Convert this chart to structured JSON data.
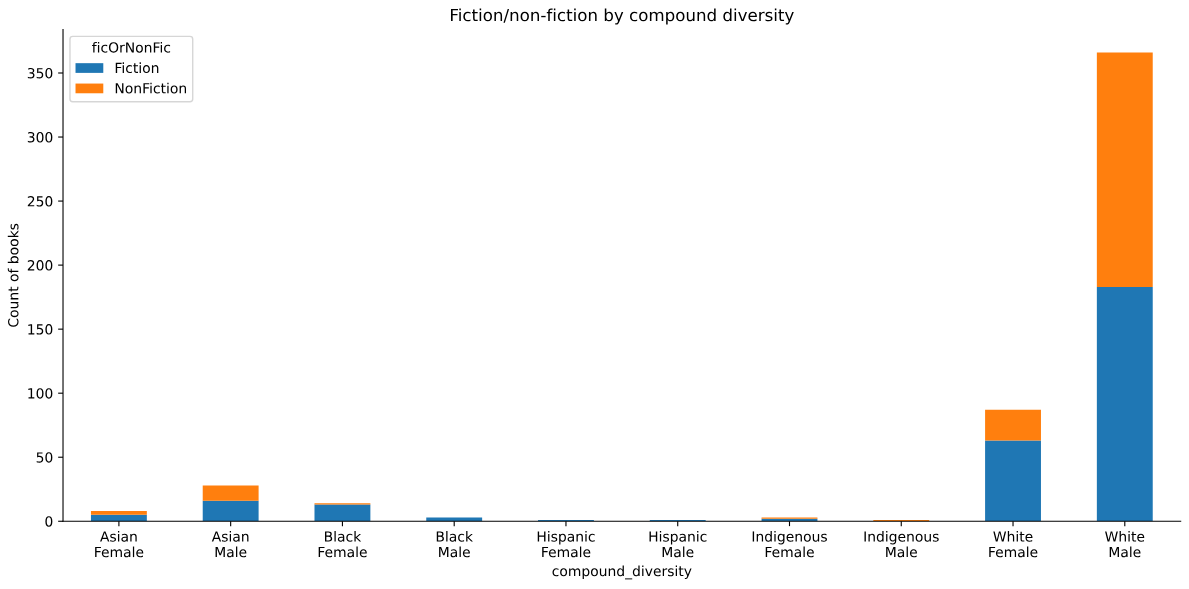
{
  "chart_data": {
    "type": "bar",
    "title": "Fiction/non-fiction by compound diversity",
    "xlabel": "compound_diversity",
    "ylabel": "Count of books",
    "legend_title": "ficOrNonFic",
    "categories": [
      "Asian\nFemale",
      "Asian\nMale",
      "Black\nFemale",
      "Black\nMale",
      "Hispanic\nFemale",
      "Hispanic\nMale",
      "Indigenous\nFemale",
      "Indigenous\nMale",
      "White\nFemale",
      "White\nMale"
    ],
    "series": [
      {
        "name": "Fiction",
        "color": "#1f77b4",
        "values": [
          5,
          16,
          13,
          3,
          1,
          1,
          2,
          0,
          63,
          183
        ]
      },
      {
        "name": "NonFiction",
        "color": "#ff7f0e",
        "values": [
          3,
          12,
          1,
          0,
          0,
          0,
          1,
          1,
          24,
          183
        ]
      }
    ],
    "stacked": true,
    "ylim": [
      0,
      384
    ],
    "yticks": [
      0,
      50,
      100,
      150,
      200,
      250,
      300,
      350
    ],
    "grid": false,
    "legend": "top left"
  }
}
